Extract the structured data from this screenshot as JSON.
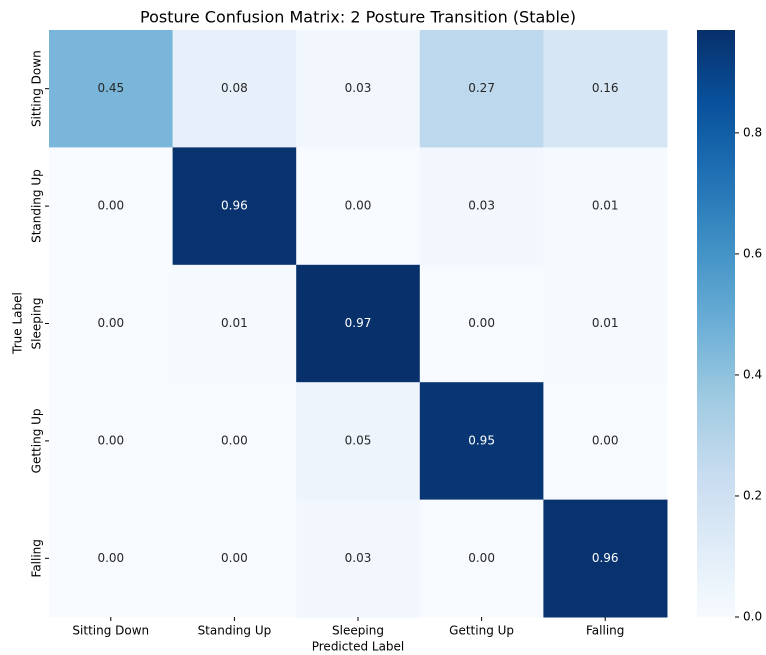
{
  "chart_data": {
    "type": "heatmap",
    "title": "Posture Confusion Matrix: 2 Posture Transition (Stable)",
    "xlabel": "Predicted Label",
    "ylabel": "True Label",
    "x_categories": [
      "Sitting Down",
      "Standing Up",
      "Sleeping",
      "Getting Up",
      "Falling"
    ],
    "y_categories": [
      "Sitting Down",
      "Standing Up",
      "Sleeping",
      "Getting Up",
      "Falling"
    ],
    "values": [
      [
        0.45,
        0.08,
        0.03,
        0.27,
        0.16
      ],
      [
        0,
        0.96,
        0,
        0.03,
        0.01
      ],
      [
        0,
        0.01,
        0.97,
        0,
        0.01
      ],
      [
        0,
        0,
        0.05,
        0.95,
        0
      ],
      [
        0,
        0,
        0.03,
        0,
        0.96
      ]
    ],
    "value_labels": [
      [
        "0.45",
        "0.08",
        "0.03",
        "0.27",
        "0.16"
      ],
      [
        "0.00",
        "0.96",
        "0.00",
        "0.03",
        "0.01"
      ],
      [
        "0.00",
        "0.01",
        "0.97",
        "0.00",
        "0.01"
      ],
      [
        "0.00",
        "0.00",
        "0.05",
        "0.95",
        "0.00"
      ],
      [
        "0.00",
        "0.00",
        "0.03",
        "0.00",
        "0.96"
      ]
    ],
    "colormap": "Blues",
    "zlim": [
      0,
      0.97
    ],
    "zticks": [
      {
        "value": 0,
        "label": "0.0"
      },
      0.2,
      0.4,
      0.6,
      0.8
    ]
  }
}
